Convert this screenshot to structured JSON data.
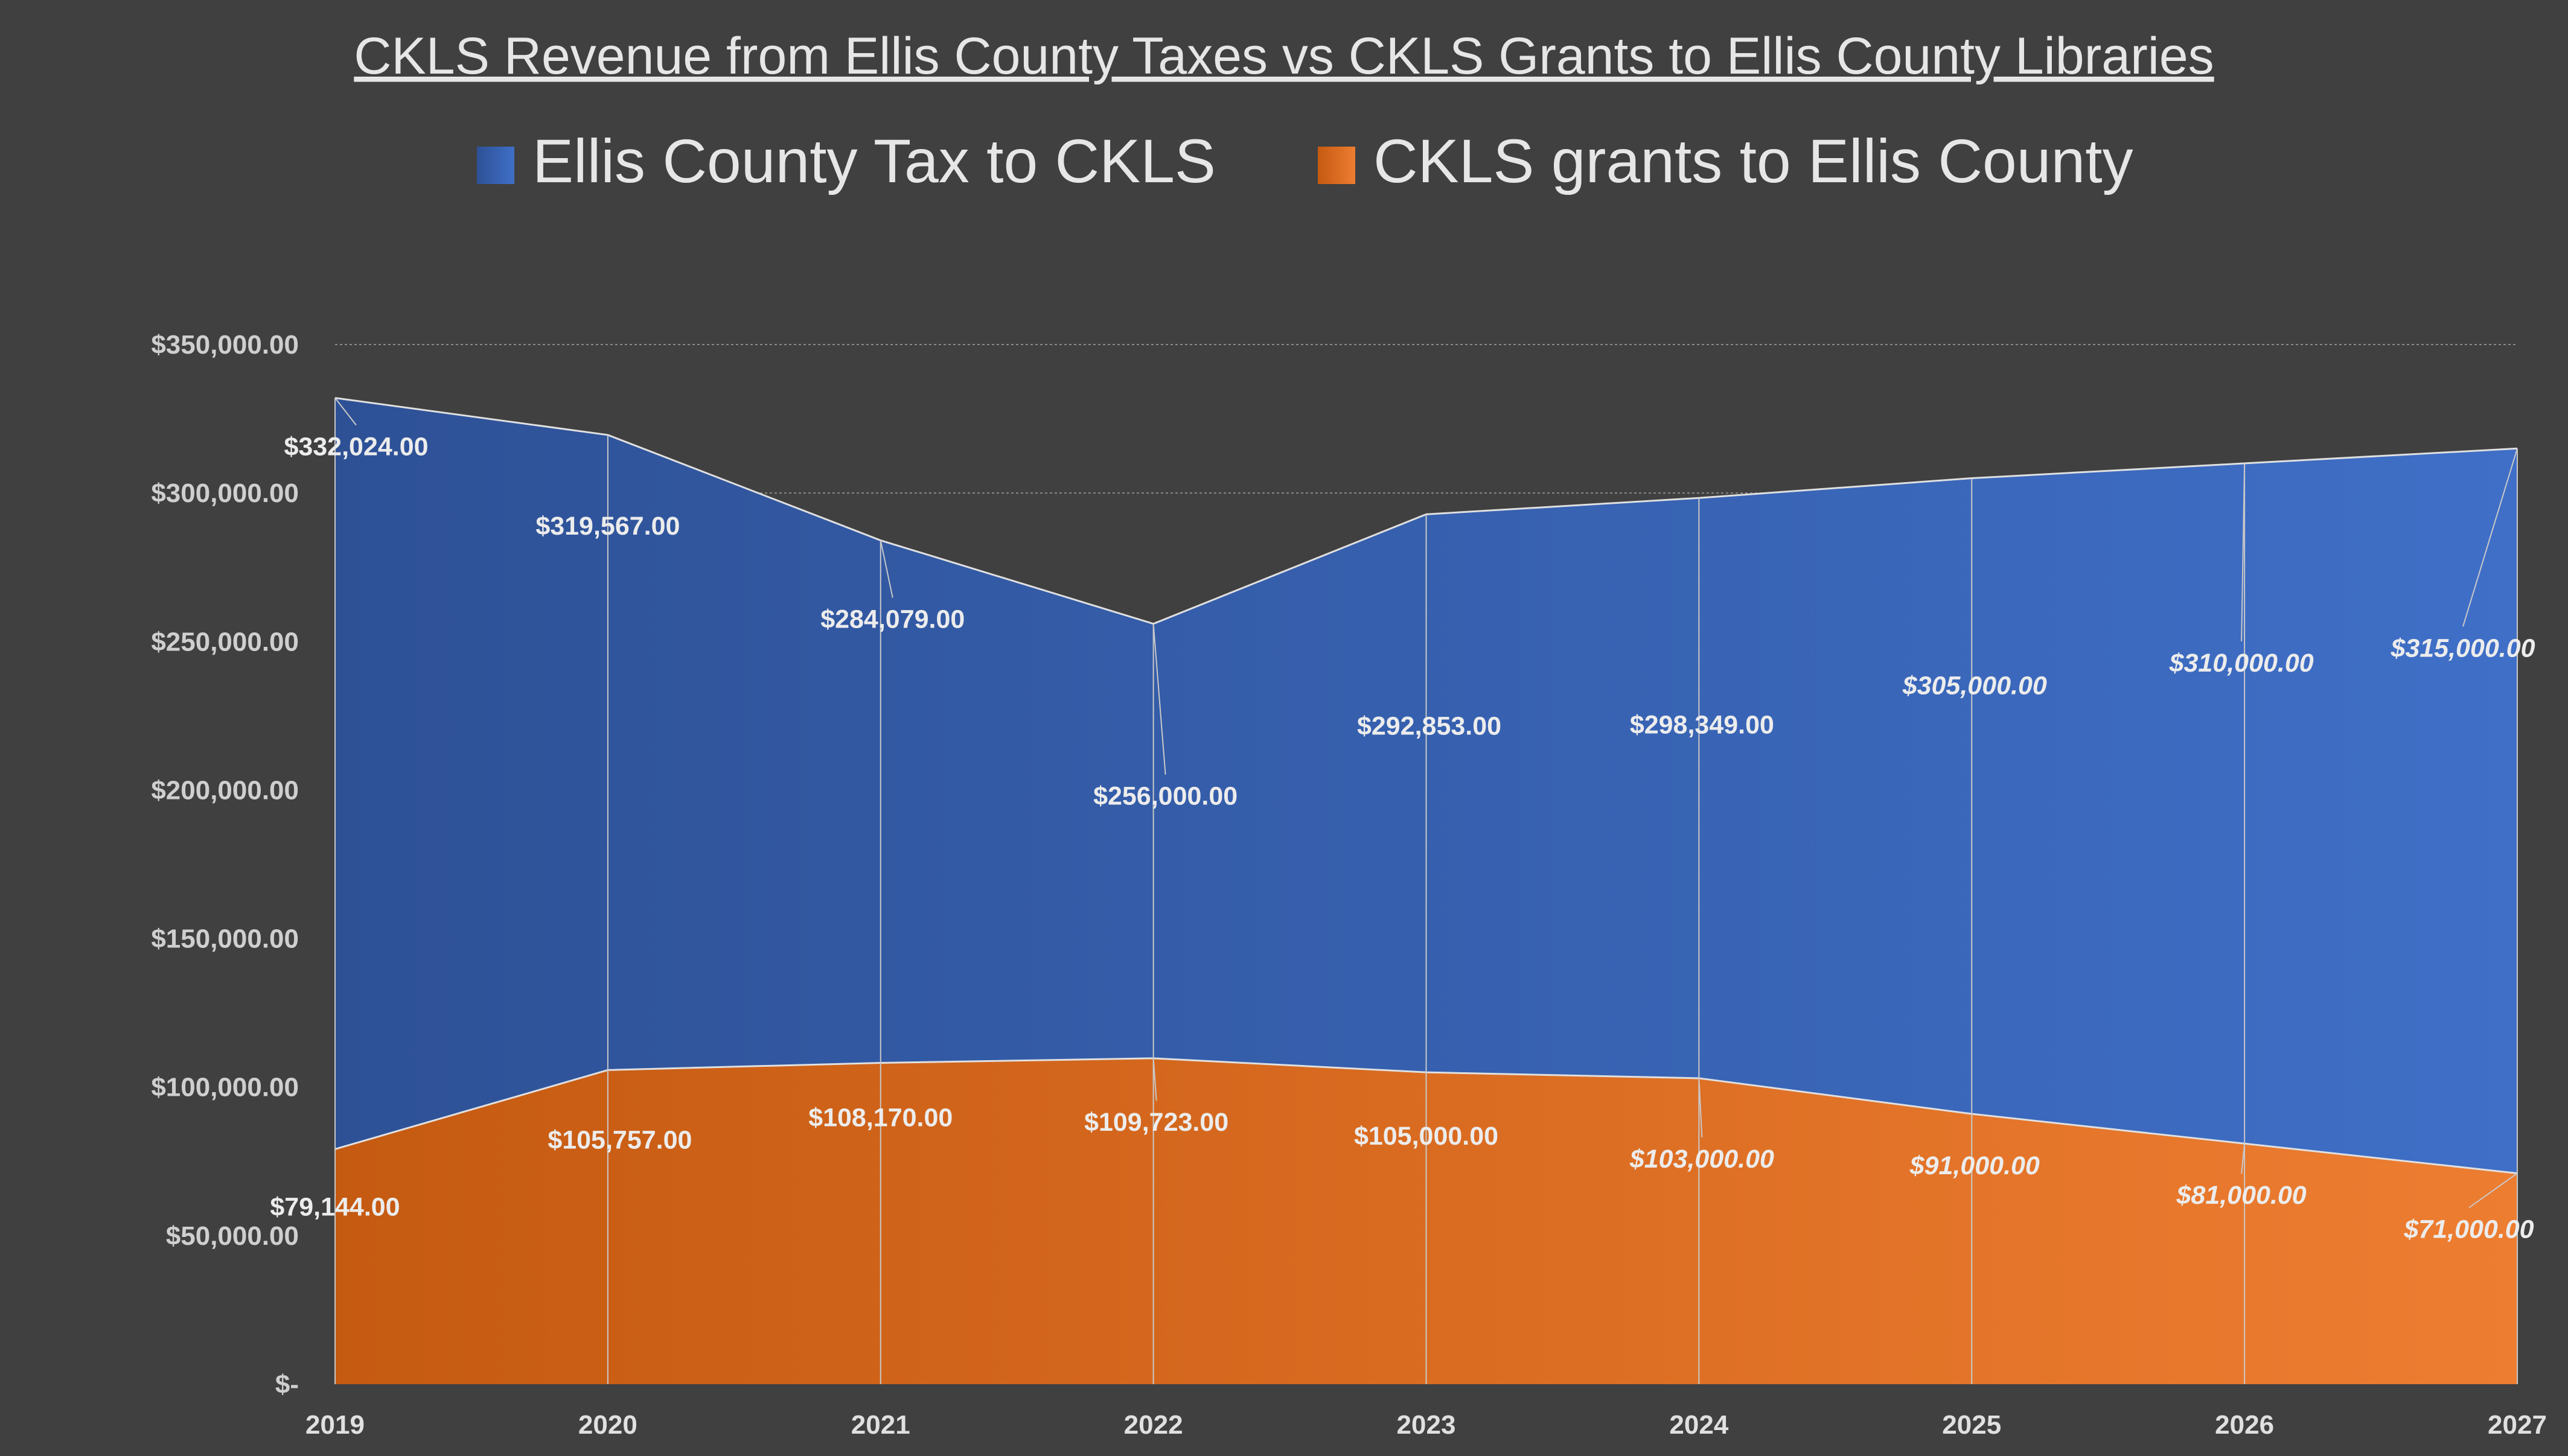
{
  "chart_data": {
    "type": "area",
    "title": "CKLS Revenue from Ellis County Taxes vs CKLS Grants to Ellis County Libraries",
    "xlabel": "",
    "ylabel": "",
    "categories": [
      "2019",
      "2020",
      "2021",
      "2022",
      "2023",
      "2024",
      "2025",
      "2026",
      "2027"
    ],
    "ylim": [
      0,
      350000
    ],
    "yticks": [
      0,
      50000,
      100000,
      150000,
      200000,
      250000,
      300000,
      350000
    ],
    "ytick_labels": [
      "$-",
      "$50,000.00",
      "$100,000.00",
      "$150,000.00",
      "$200,000.00",
      "$250,000.00",
      "$300,000.00",
      "$350,000.00"
    ],
    "grid": true,
    "legend_position": "top",
    "series": [
      {
        "name": "Ellis County Tax to CKLS",
        "color": "#3f6fc7",
        "color_dark": "#2e5196",
        "values": [
          332024,
          319567,
          284079,
          256000,
          292853,
          298349,
          305000,
          310000,
          315000
        ],
        "labels": [
          "$332,024.00",
          "$319,567.00",
          "$284,079.00",
          "$256,000.00",
          "$292,853.00",
          "$298,349.00",
          "$305,000.00",
          "$310,000.00",
          "$315,000.00"
        ]
      },
      {
        "name": "CKLS grants to Ellis County",
        "color": "#ed7d31",
        "color_dark": "#c55a11",
        "values": [
          79144,
          105757,
          108170,
          109723,
          105000,
          103000,
          91000,
          81000,
          71000
        ],
        "labels": [
          "$79,144.00",
          "$105,757.00",
          "$108,170.00",
          "$109,723.00",
          "$105,000.00",
          "$103,000.00",
          "$91,000.00",
          "$81,000.00",
          "$71,000.00"
        ]
      }
    ]
  }
}
